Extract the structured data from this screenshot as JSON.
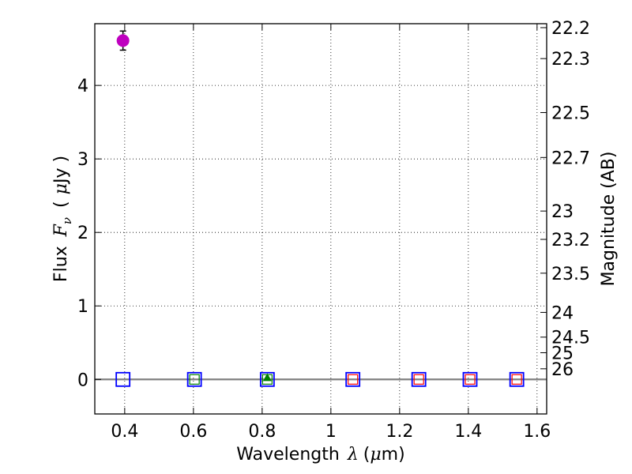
{
  "chart_data": {
    "type": "scatter",
    "xlabel": {
      "prefix": "Wavelength",
      "symbol": "λ",
      "open": "(",
      "mu": "μ",
      "unit": "m)"
    },
    "ylabel": {
      "prefix": "Flux",
      "symbol": "F",
      "sub": "ν",
      "open": "(",
      "mu": "μ",
      "unit": "Jy )"
    },
    "y2label": "Magnitude (AB)",
    "xlim": [
      0.313,
      1.628
    ],
    "ylim": [
      -0.47,
      4.84
    ],
    "grid": true,
    "xticks": [
      0.4,
      0.6,
      0.8,
      1.0,
      1.2,
      1.4,
      1.6
    ],
    "xtick_labels": [
      "0.4",
      "0.6",
      "0.8",
      "1",
      "1.2",
      "1.4",
      "1.6"
    ],
    "yticks": [
      0,
      1,
      2,
      3,
      4
    ],
    "ytick_labels": [
      "0",
      "1",
      "2",
      "3",
      "4"
    ],
    "y2ticks": [
      {
        "label": "22.2",
        "mag": 22.2
      },
      {
        "label": "22.3",
        "mag": 22.3
      },
      {
        "label": "22.5",
        "mag": 22.5
      },
      {
        "label": "22.7",
        "mag": 22.7
      },
      {
        "label": "23",
        "mag": 23
      },
      {
        "label": "23.2",
        "mag": 23.2
      },
      {
        "label": "23.5",
        "mag": 23.5
      },
      {
        "label": "24",
        "mag": 24
      },
      {
        "label": "24.5",
        "mag": 24.5
      },
      {
        "label": "25",
        "mag": 25
      },
      {
        "label": "26",
        "mag": 26
      }
    ],
    "zero_line": {
      "y": 0,
      "color": "#808080"
    },
    "detection": {
      "x": 0.395,
      "y": 4.61,
      "yerr": 0.13,
      "color": "#bf00bf"
    },
    "triangle": {
      "x": 0.815,
      "y": 0.02,
      "color": "#008000"
    },
    "outer_squares": {
      "color": "#0000ff",
      "x": [
        0.395,
        0.603,
        0.815,
        1.064,
        1.256,
        1.405,
        1.541
      ],
      "y": 0
    },
    "inner_squares": [
      {
        "x": 0.603,
        "color": "#008000"
      },
      {
        "x": 0.815,
        "color": "#008000"
      },
      {
        "x": 1.064,
        "color": "#ff0000"
      },
      {
        "x": 1.256,
        "color": "#ff0000"
      },
      {
        "x": 1.405,
        "color": "#ff0000"
      },
      {
        "x": 1.541,
        "color": "#ff0000"
      }
    ]
  }
}
